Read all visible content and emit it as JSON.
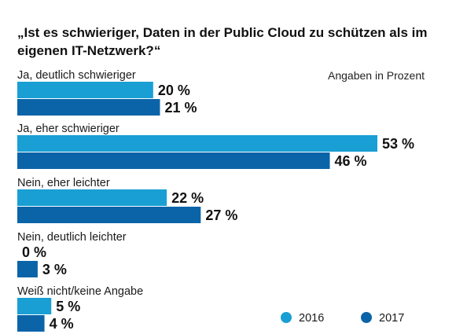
{
  "chart_data": {
    "type": "bar",
    "orientation": "horizontal",
    "title": "„Ist es schwieriger, Daten in der Public Cloud zu schützen als im eigenen IT-Netzwerk?“",
    "note": "Angaben in Prozent",
    "categories": [
      "Ja, deutlich schwieriger",
      "Ja, eher schwieriger",
      "Nein, eher leichter",
      "Nein, deutlich leichter",
      "Weiß nicht/keine Angabe"
    ],
    "series": [
      {
        "name": "2016",
        "values": [
          20,
          53,
          22,
          0,
          5
        ],
        "color": "#199fd4"
      },
      {
        "name": "2017",
        "values": [
          21,
          46,
          27,
          3,
          4
        ],
        "color": "#0b64a8"
      }
    ],
    "value_suffix": " %",
    "xlim": [
      0,
      53
    ],
    "legend_position": "bottom-right"
  }
}
